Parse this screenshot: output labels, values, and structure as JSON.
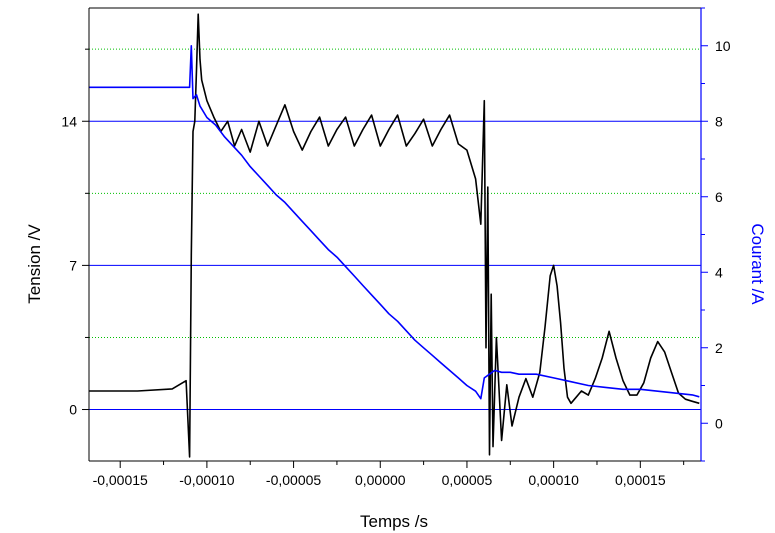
{
  "chart_data": {
    "type": "line",
    "xlabel": "Temps /s",
    "ylabel_left": "Tension /V",
    "ylabel_right": "Courant /A",
    "xlim": [
      -0.000168,
      0.000185
    ],
    "ylim_left": [
      -2.5,
      19.5
    ],
    "ylim_right": [
      -1.0,
      11.0
    ],
    "x_ticks": [
      {
        "value": -0.00015,
        "label": "-0,00015"
      },
      {
        "value": -0.0001,
        "label": "-0,00010"
      },
      {
        "value": -5e-05,
        "label": "-0,00005"
      },
      {
        "value": 0.0,
        "label": "0,00000"
      },
      {
        "value": 5e-05,
        "label": "0,00005"
      },
      {
        "value": 0.0001,
        "label": "0,00010"
      },
      {
        "value": 0.00015,
        "label": "0,00015"
      }
    ],
    "y_left_ticks": [
      {
        "value": 0,
        "label": "0"
      },
      {
        "value": 7,
        "label": "7"
      },
      {
        "value": 14,
        "label": "14"
      }
    ],
    "y_right_ticks": [
      {
        "value": 0,
        "label": "0"
      },
      {
        "value": 2,
        "label": "2"
      },
      {
        "value": 4,
        "label": "4"
      },
      {
        "value": 6,
        "label": "6"
      },
      {
        "value": 8,
        "label": "8"
      },
      {
        "value": 10,
        "label": "10"
      }
    ],
    "grid": {
      "major_left": true,
      "minor_left_dotted": true
    },
    "colors": {
      "tension": "#000000",
      "courant": "#0000ff",
      "grid_major": "#0000ff",
      "grid_minor": "#00c000"
    },
    "series": [
      {
        "axis": "left",
        "color": "#000000",
        "x": [
          -0.000168,
          -0.00014,
          -0.00012,
          -0.000112,
          -0.00011,
          -0.000109,
          -0.000108,
          -0.000107,
          -0.000106,
          -0.000105,
          -0.000104,
          -0.000103,
          -0.0001,
          -9.6e-05,
          -9.2e-05,
          -8.8e-05,
          -8.4e-05,
          -8e-05,
          -7.5e-05,
          -7e-05,
          -6.5e-05,
          -6e-05,
          -5.5e-05,
          -5e-05,
          -4.5e-05,
          -4e-05,
          -3.5e-05,
          -3e-05,
          -2.5e-05,
          -2e-05,
          -1.5e-05,
          -1e-05,
          -5e-06,
          0.0,
          5e-06,
          1e-05,
          1.5e-05,
          2e-05,
          2.5e-05,
          3e-05,
          3.5e-05,
          4e-05,
          4.5e-05,
          5e-05,
          5.5e-05,
          5.8e-05,
          6e-05,
          6.1e-05,
          6.2e-05,
          6.3e-05,
          6.4e-05,
          6.5e-05,
          6.7e-05,
          7e-05,
          7.3e-05,
          7.6e-05,
          8e-05,
          8.4e-05,
          8.8e-05,
          9.2e-05,
          9.5e-05,
          9.8e-05,
          0.0001,
          0.000102,
          0.000104,
          0.000106,
          0.000108,
          0.00011,
          0.000113,
          0.000116,
          0.00012,
          0.000124,
          0.000128,
          0.000132,
          0.000136,
          0.00014,
          0.000144,
          0.000148,
          0.000152,
          0.000156,
          0.00016,
          0.000164,
          0.000168,
          0.000172,
          0.000176,
          0.00018,
          0.000184
        ],
        "values": [
          0.9,
          0.9,
          1.0,
          1.4,
          -2.3,
          7.5,
          13.5,
          14.0,
          16.5,
          19.2,
          17.0,
          16.0,
          15.0,
          14.2,
          13.5,
          14.0,
          12.8,
          13.6,
          12.5,
          14.0,
          12.8,
          13.8,
          14.8,
          13.5,
          12.6,
          13.5,
          14.2,
          12.8,
          13.6,
          14.2,
          12.8,
          13.6,
          14.3,
          12.8,
          13.6,
          14.3,
          12.8,
          13.4,
          14.1,
          12.8,
          13.6,
          14.3,
          12.9,
          12.6,
          11.2,
          9.0,
          15.0,
          3.0,
          10.8,
          -2.2,
          5.6,
          -1.8,
          3.5,
          -1.5,
          1.2,
          -0.8,
          0.6,
          1.5,
          0.6,
          1.8,
          4.0,
          6.5,
          7.0,
          6.0,
          4.2,
          2.0,
          0.6,
          0.3,
          0.6,
          0.9,
          0.7,
          1.5,
          2.5,
          3.8,
          2.5,
          1.4,
          0.7,
          0.7,
          1.3,
          2.5,
          3.3,
          2.8,
          1.8,
          0.8,
          0.5,
          0.4,
          0.3
        ]
      },
      {
        "axis": "right",
        "color": "#0000ff",
        "x": [
          -0.000168,
          -0.00014,
          -0.00012,
          -0.000112,
          -0.00011,
          -0.000109,
          -0.000108,
          -0.000106,
          -0.000104,
          -0.0001,
          -9.5e-05,
          -9e-05,
          -8.5e-05,
          -8e-05,
          -7.5e-05,
          -7e-05,
          -6.5e-05,
          -6e-05,
          -5.5e-05,
          -5e-05,
          -4.5e-05,
          -4e-05,
          -3.5e-05,
          -3e-05,
          -2.5e-05,
          -2e-05,
          -1.5e-05,
          -1e-05,
          -5e-06,
          0.0,
          5e-06,
          1e-05,
          1.5e-05,
          2e-05,
          2.5e-05,
          3e-05,
          3.5e-05,
          4e-05,
          4.5e-05,
          5e-05,
          5.5e-05,
          5.8e-05,
          6e-05,
          6.3e-05,
          6.6e-05,
          7e-05,
          7.5e-05,
          8e-05,
          9e-05,
          0.0001,
          0.00011,
          0.00012,
          0.00013,
          0.00014,
          0.00015,
          0.00016,
          0.00017,
          0.00018,
          0.000184
        ],
        "values": [
          8.9,
          8.9,
          8.9,
          8.9,
          8.9,
          10.0,
          8.6,
          8.7,
          8.4,
          8.1,
          7.9,
          7.6,
          7.35,
          7.1,
          6.8,
          6.55,
          6.3,
          6.05,
          5.85,
          5.6,
          5.35,
          5.1,
          4.85,
          4.6,
          4.4,
          4.15,
          3.9,
          3.65,
          3.4,
          3.15,
          2.9,
          2.7,
          2.45,
          2.2,
          2.0,
          1.8,
          1.6,
          1.4,
          1.2,
          1.0,
          0.85,
          0.65,
          1.2,
          1.3,
          1.4,
          1.35,
          1.35,
          1.3,
          1.3,
          1.2,
          1.1,
          1.0,
          0.95,
          0.9,
          0.9,
          0.85,
          0.8,
          0.75,
          0.7
        ]
      }
    ]
  }
}
